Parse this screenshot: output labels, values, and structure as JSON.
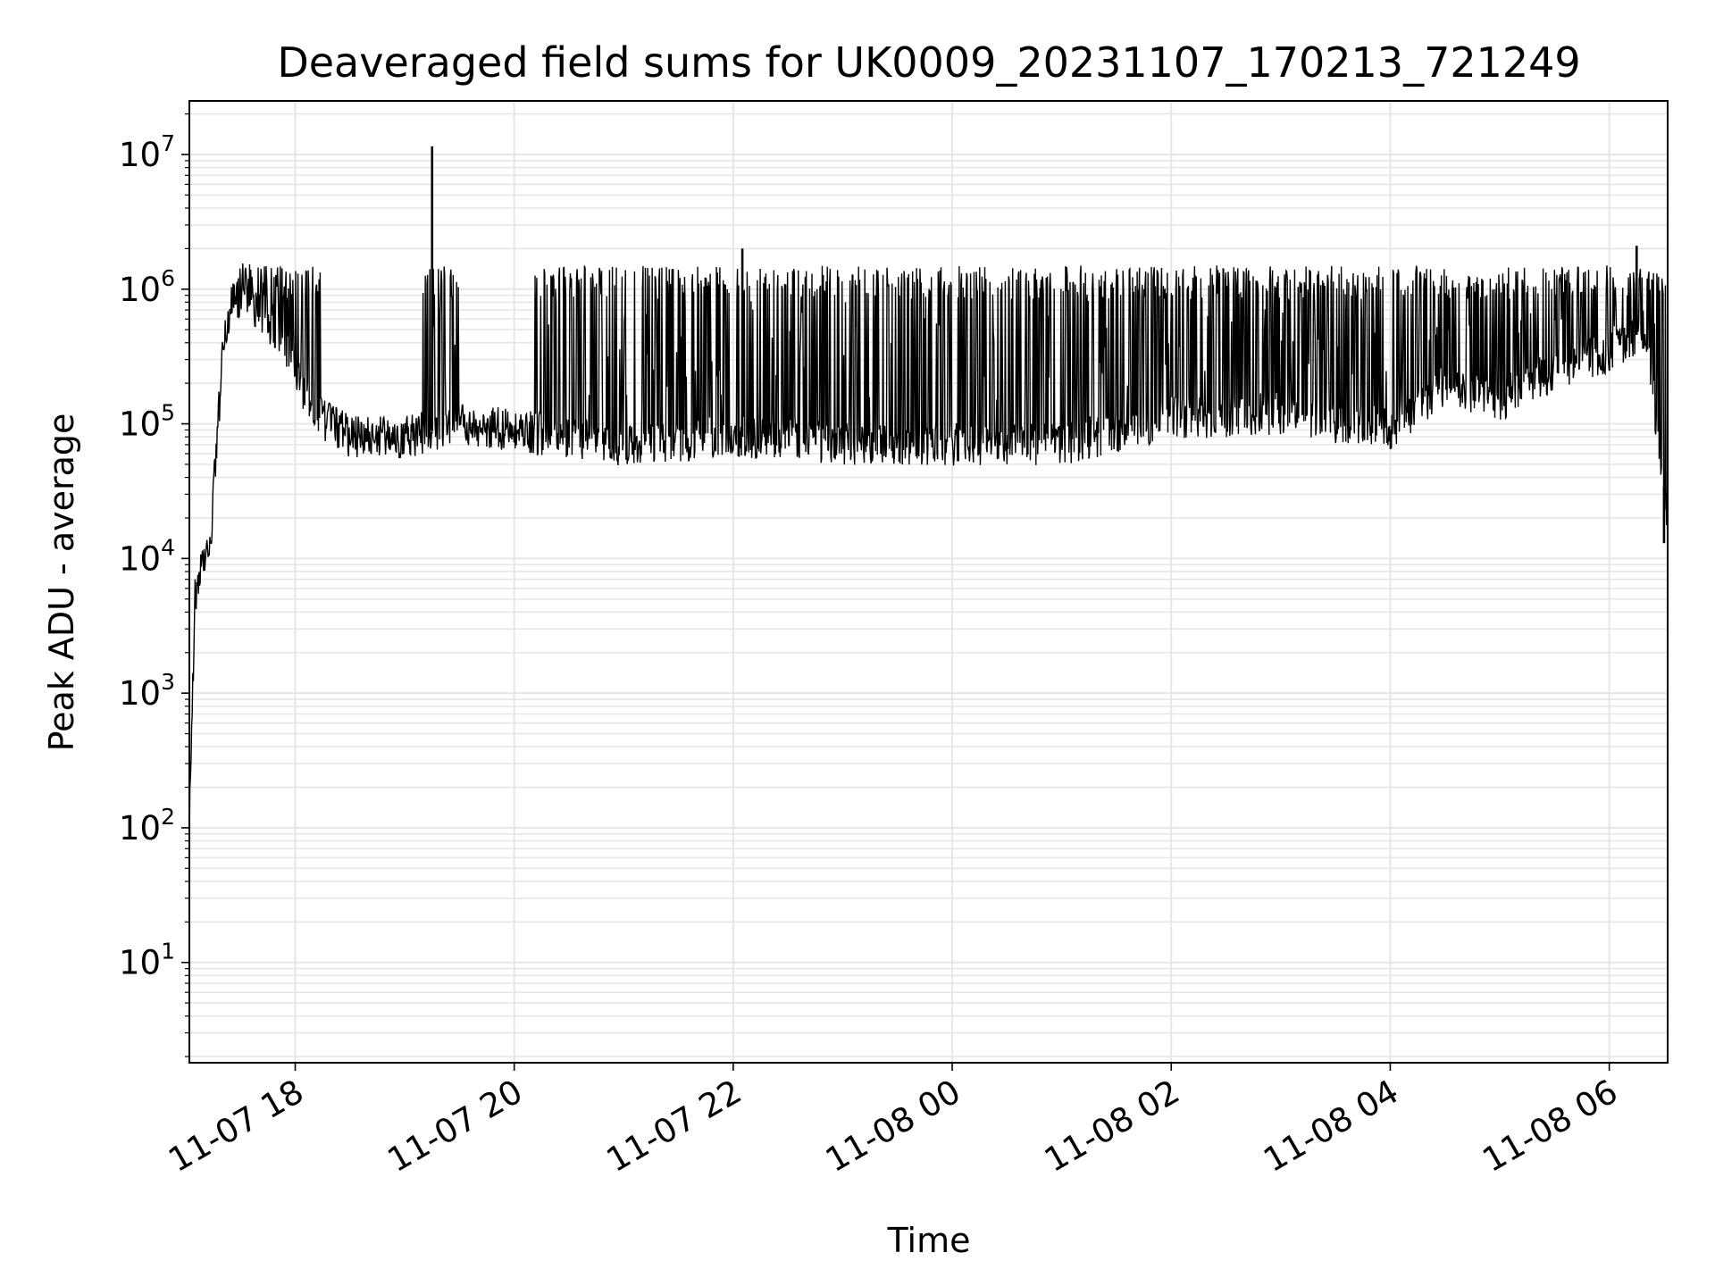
{
  "chart_data": {
    "type": "line",
    "title": "Deaveraged field sums for UK0009_20231107_170213_721249",
    "xlabel": "Time",
    "ylabel": "Peak ADU - average",
    "y_scale": "log",
    "grid": true,
    "line_color": "#000000",
    "grid_color": "#e6e6e6",
    "xlim": [
      "2023-11-07 17:02",
      "2023-11-08 06:32"
    ],
    "ylim": [
      1.8,
      25000000
    ],
    "x_ticks": [
      {
        "value": "2023-11-07 18:00",
        "label": "11-07 18"
      },
      {
        "value": "2023-11-07 20:00",
        "label": "11-07 20"
      },
      {
        "value": "2023-11-07 22:00",
        "label": "11-07 22"
      },
      {
        "value": "2023-11-08 00:00",
        "label": "11-08 00"
      },
      {
        "value": "2023-11-08 02:00",
        "label": "11-08 02"
      },
      {
        "value": "2023-11-08 04:00",
        "label": "11-08 04"
      },
      {
        "value": "2023-11-08 06:00",
        "label": "11-08 06"
      }
    ],
    "y_ticks": [
      {
        "value": 10,
        "base": "10",
        "exp": "1"
      },
      {
        "value": 100,
        "base": "10",
        "exp": "2"
      },
      {
        "value": 1000,
        "base": "10",
        "exp": "3"
      },
      {
        "value": 10000,
        "base": "10",
        "exp": "4"
      },
      {
        "value": 100000,
        "base": "10",
        "exp": "5"
      },
      {
        "value": 1000000,
        "base": "10",
        "exp": "6"
      },
      {
        "value": 10000000,
        "base": "10",
        "exp": "7"
      }
    ],
    "series": [
      {
        "baseline_envelope": [
          {
            "x": "2023-11-07 17:02",
            "y": 100
          },
          {
            "x": "2023-11-07 17:05",
            "y": 5000
          },
          {
            "x": "2023-11-07 17:10",
            "y": 10000
          },
          {
            "x": "2023-11-07 17:13",
            "y": 10000
          },
          {
            "x": "2023-11-07 17:20",
            "y": 300000
          },
          {
            "x": "2023-11-07 17:25",
            "y": 800000
          },
          {
            "x": "2023-11-07 17:35",
            "y": 800000
          },
          {
            "x": "2023-11-07 17:50",
            "y": 500000
          },
          {
            "x": "2023-11-07 18:10",
            "y": 120000
          },
          {
            "x": "2023-11-07 18:30",
            "y": 80000
          },
          {
            "x": "2023-11-07 19:00",
            "y": 80000
          },
          {
            "x": "2023-11-07 19:30",
            "y": 100000
          },
          {
            "x": "2023-11-07 20:00",
            "y": 90000
          },
          {
            "x": "2023-11-07 21:00",
            "y": 70000
          },
          {
            "x": "2023-11-07 22:00",
            "y": 80000
          },
          {
            "x": "2023-11-07 22:30",
            "y": 80000
          },
          {
            "x": "2023-11-07 23:00",
            "y": 70000
          },
          {
            "x": "2023-11-08 00:00",
            "y": 70000
          },
          {
            "x": "2023-11-08 01:00",
            "y": 70000
          },
          {
            "x": "2023-11-08 02:00",
            "y": 110000
          },
          {
            "x": "2023-11-08 03:00",
            "y": 120000
          },
          {
            "x": "2023-11-08 04:00",
            "y": 90000
          },
          {
            "x": "2023-11-08 04:30",
            "y": 200000
          },
          {
            "x": "2023-11-08 05:00",
            "y": 150000
          },
          {
            "x": "2023-11-08 05:30",
            "y": 250000
          },
          {
            "x": "2023-11-08 06:00",
            "y": 350000
          },
          {
            "x": "2023-11-08 06:20",
            "y": 500000
          },
          {
            "x": "2023-11-08 06:32",
            "y": 20000
          }
        ],
        "spike_peak": 1500000,
        "spike_intervals": [
          {
            "from": "2023-11-07 17:25",
            "to": "2023-11-07 18:15"
          },
          {
            "from": "2023-11-07 19:10",
            "to": "2023-11-07 19:30"
          },
          {
            "from": "2023-11-07 20:10",
            "to": "2023-11-07 23:00"
          },
          {
            "from": "2023-11-07 23:00",
            "to": "2023-11-08 02:00"
          },
          {
            "from": "2023-11-08 02:00",
            "to": "2023-11-08 06:32"
          }
        ],
        "notable_points": [
          {
            "x": "2023-11-07 19:15",
            "y": 11500000
          },
          {
            "x": "2023-11-07 22:05",
            "y": 2000000
          },
          {
            "x": "2023-11-08 06:15",
            "y": 2100000
          },
          {
            "x": "2023-11-08 06:30",
            "y": 13000
          }
        ]
      }
    ]
  }
}
